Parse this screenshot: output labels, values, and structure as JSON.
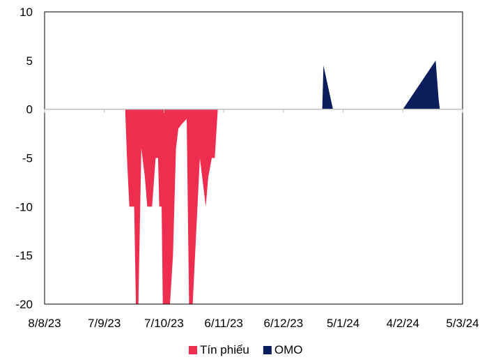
{
  "chart_data": {
    "type": "area",
    "title": "",
    "xlabel": "",
    "ylabel": "",
    "ylim": [
      -20,
      10
    ],
    "yticks": [
      10,
      5,
      0,
      -5,
      -10,
      -15,
      -20
    ],
    "x_tick_labels": [
      "8/8/23",
      "7/9/23",
      "7/10/23",
      "6/11/23",
      "6/12/23",
      "5/1/24",
      "4/2/24",
      "5/3/24"
    ],
    "x_domain": [
      0,
      7
    ],
    "grid": false,
    "legend_position": "bottom",
    "series": [
      {
        "name": "Tín phiếu",
        "color": "#ee2e4e",
        "points": [
          [
            1.35,
            0
          ],
          [
            1.38,
            -5
          ],
          [
            1.42,
            -10
          ],
          [
            1.5,
            -10
          ],
          [
            1.53,
            -20
          ],
          [
            1.57,
            -20
          ],
          [
            1.62,
            -4
          ],
          [
            1.68,
            -7
          ],
          [
            1.72,
            -10
          ],
          [
            1.8,
            -10
          ],
          [
            1.86,
            -5
          ],
          [
            1.9,
            -5
          ],
          [
            1.92,
            -10
          ],
          [
            1.96,
            -10
          ],
          [
            1.98,
            -20
          ],
          [
            2.1,
            -20
          ],
          [
            2.15,
            -15
          ],
          [
            2.2,
            -4
          ],
          [
            2.24,
            -2
          ],
          [
            2.3,
            -1.5
          ],
          [
            2.38,
            -1
          ],
          [
            2.42,
            -20
          ],
          [
            2.48,
            -20
          ],
          [
            2.52,
            -15
          ],
          [
            2.6,
            -5
          ],
          [
            2.7,
            -10
          ],
          [
            2.74,
            -7
          ],
          [
            2.8,
            -5
          ],
          [
            2.85,
            -5
          ],
          [
            2.9,
            0
          ]
        ]
      },
      {
        "name": "OMO",
        "color": "#0b1e5b",
        "points": [
          [
            4.65,
            0
          ],
          [
            4.67,
            4.5
          ],
          [
            4.83,
            0
          ],
          [
            6.0,
            0
          ],
          [
            6.55,
            5.0
          ],
          [
            6.6,
            1
          ],
          [
            6.62,
            0
          ]
        ]
      }
    ]
  }
}
